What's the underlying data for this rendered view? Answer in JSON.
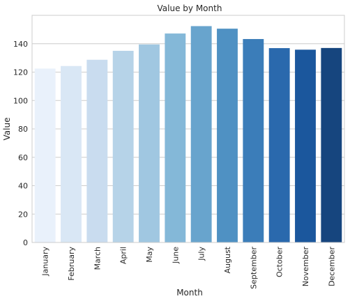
{
  "chart_data": {
    "type": "bar",
    "title": "Value by Month",
    "xlabel": "Month",
    "ylabel": "Value",
    "ylim": [
      0,
      160
    ],
    "yticks": [
      0,
      20,
      40,
      60,
      80,
      100,
      120,
      140
    ],
    "grid": "horizontal",
    "categories": [
      "January",
      "February",
      "March",
      "April",
      "May",
      "June",
      "July",
      "August",
      "September",
      "October",
      "November",
      "December"
    ],
    "values": [
      122.5,
      124.3,
      128.7,
      135.0,
      139.5,
      147.2,
      152.4,
      150.6,
      143.3,
      136.9,
      135.8,
      137.0
    ],
    "colors": [
      "#e9f1fb",
      "#d9e7f5",
      "#c9dcef",
      "#b6d3e8",
      "#a0c7e1",
      "#84b8d8",
      "#68a4cd",
      "#4f91c3",
      "#3b7db9",
      "#2a69ad",
      "#1b579d",
      "#16457e"
    ]
  }
}
